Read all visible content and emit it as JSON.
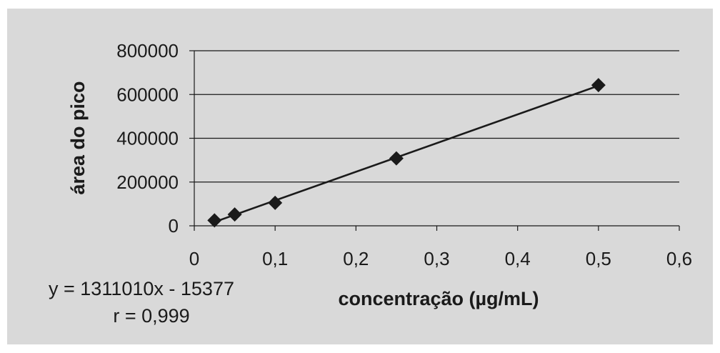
{
  "chart_data": {
    "type": "scatter",
    "title": "",
    "xlabel": "concentração (µg/mL)",
    "ylabel": "área do pico",
    "xlim": [
      0,
      0.6
    ],
    "ylim": [
      0,
      800000
    ],
    "x_ticks": [
      "0",
      "0,1",
      "0,2",
      "0,3",
      "0,4",
      "0,5",
      "0,6"
    ],
    "y_ticks": [
      "0",
      "200000",
      "400000",
      "600000",
      "800000"
    ],
    "grid": "horizontal",
    "series": [
      {
        "x": [
          0.025,
          0.05,
          0.1,
          0.25,
          0.5
        ],
        "y": [
          25000,
          52000,
          105000,
          308000,
          643000
        ],
        "marker": "diamond",
        "color": "#1a1a1a"
      }
    ],
    "trendline": {
      "slope": 1311010,
      "intercept": -15377,
      "x_range": [
        0.025,
        0.5
      ]
    },
    "annotations": [
      "y = 1311010x - 15377",
      "r = 0,999"
    ],
    "background_color": "#d9d9d9"
  }
}
